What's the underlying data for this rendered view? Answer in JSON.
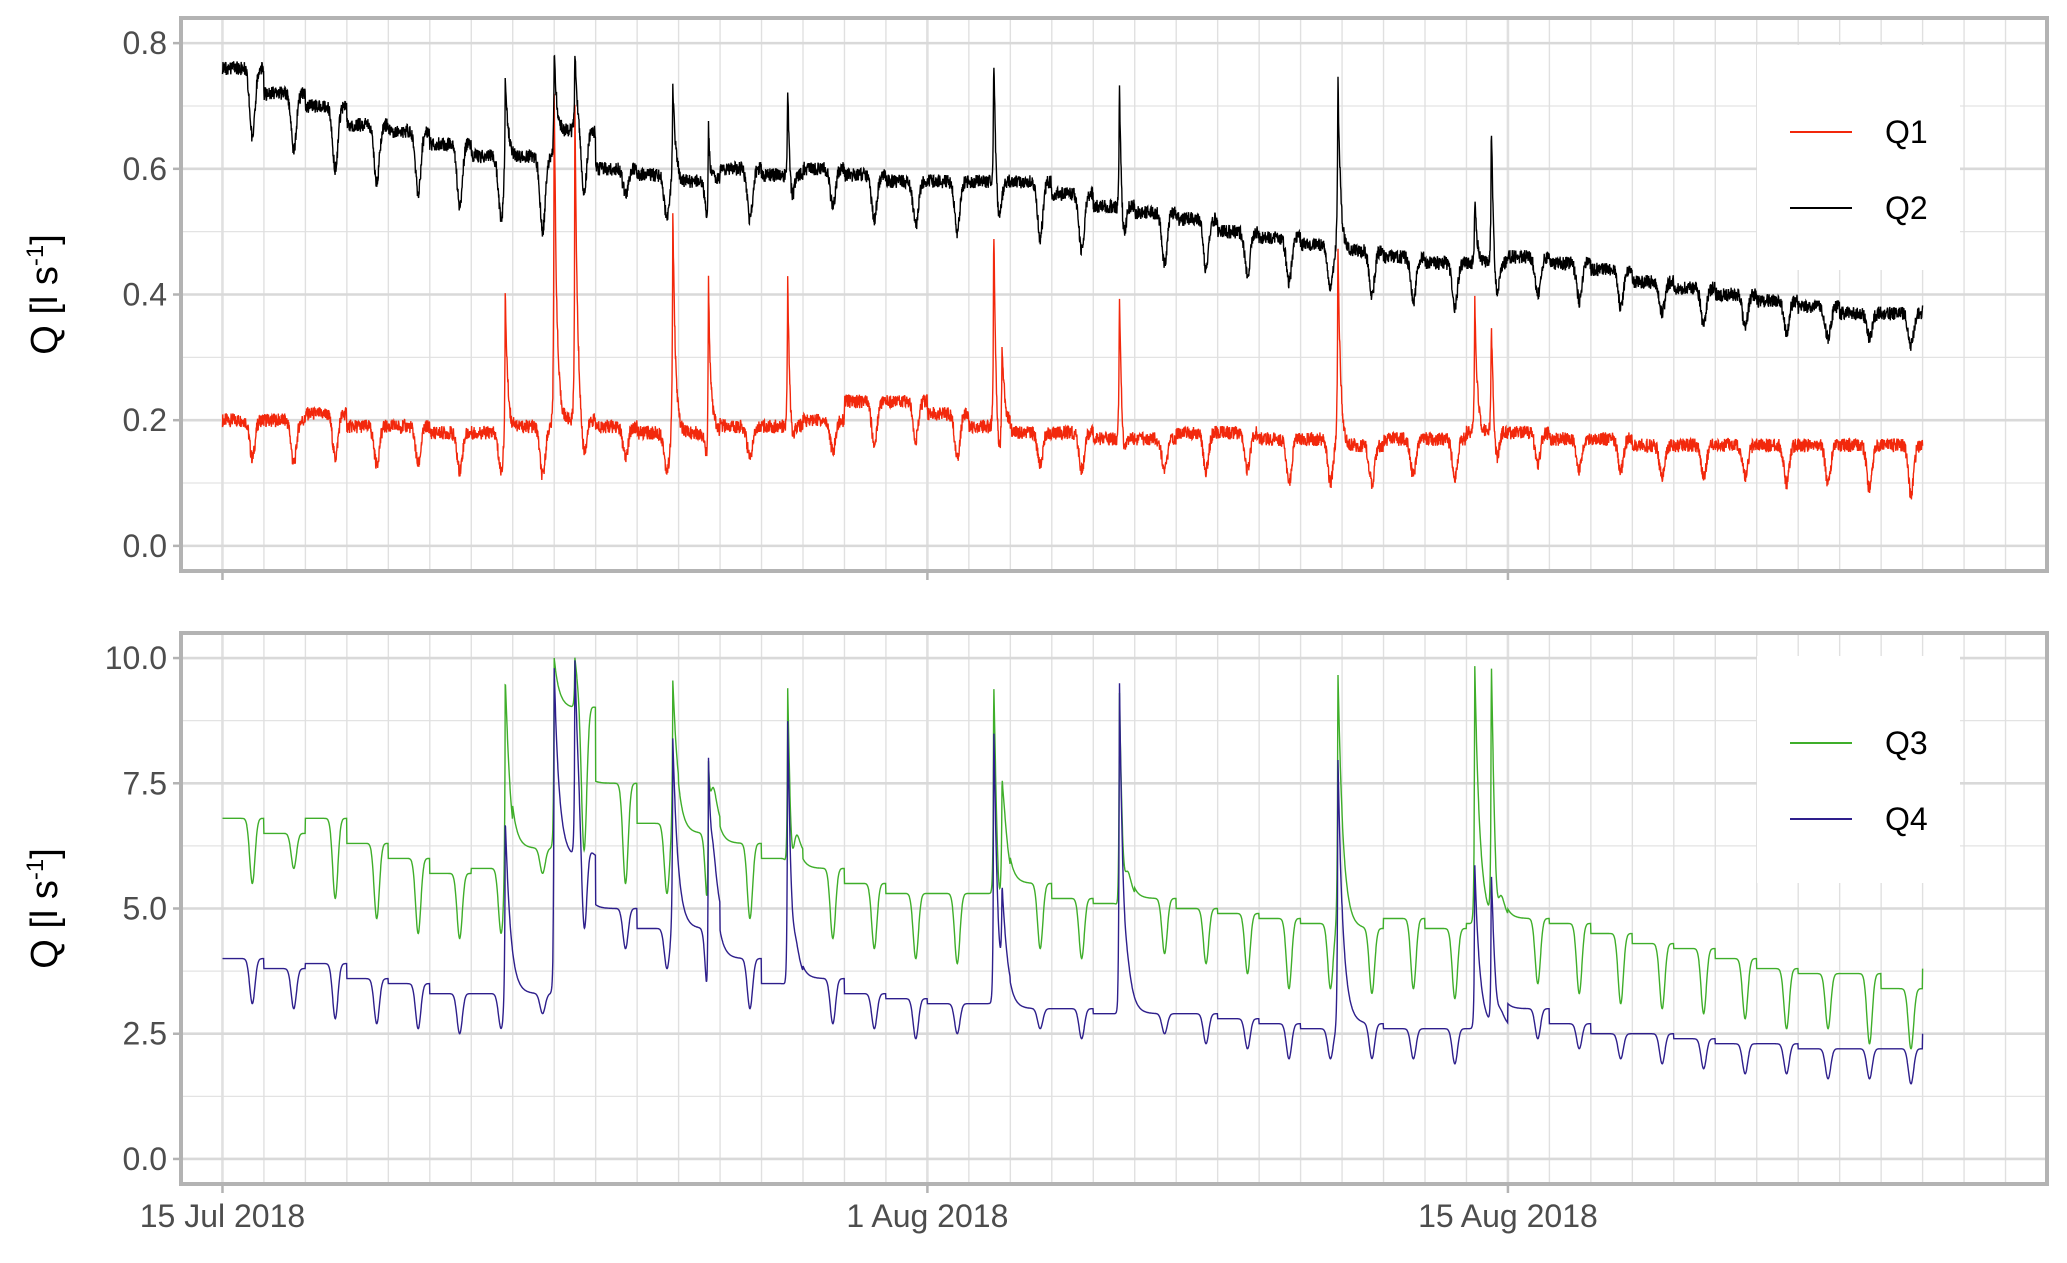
{
  "chart_data": {
    "type": "line",
    "x_start_date": "15 Jul 2018",
    "x_unit": "days since 15 Jul 2018",
    "x_tick_labels": [
      "15 Jul 2018",
      "1 Aug 2018",
      "15 Aug 2018"
    ],
    "x_tick_days": [
      0,
      17,
      31
    ],
    "xlim_days": [
      -1,
      44
    ],
    "daily_profile_note": "daily max/min per day, diurnal minimum in the evening",
    "panels": [
      {
        "ylabel": {
          "main": "Q [l s",
          "sup": "-1",
          "end": "]"
        },
        "ylim": [
          -0.04,
          0.84
        ],
        "y_ticks": [
          0.0,
          0.2,
          0.4,
          0.6,
          0.8
        ],
        "y_tick_labels": [
          "0.0",
          "0.2",
          "0.4",
          "0.6",
          "0.8"
        ],
        "legend_position": "top-right",
        "series": [
          {
            "name": "Q1",
            "color": "#f2280c",
            "daily_max": [
              0.2,
              0.2,
              0.21,
              0.19,
              0.19,
              0.18,
              0.18,
              0.19,
              0.2,
              0.19,
              0.18,
              0.18,
              0.19,
              0.19,
              0.2,
              0.23,
              0.23,
              0.21,
              0.19,
              0.18,
              0.18,
              0.17,
              0.17,
              0.18,
              0.18,
              0.17,
              0.17,
              0.16,
              0.17,
              0.17,
              0.18,
              0.18,
              0.17,
              0.17,
              0.16,
              0.16,
              0.16,
              0.16,
              0.16,
              0.16,
              0.16,
              0.17
            ],
            "daily_min": [
              0.14,
              0.13,
              0.14,
              0.13,
              0.13,
              0.12,
              0.12,
              0.11,
              0.14,
              0.14,
              0.12,
              0.12,
              0.14,
              0.14,
              0.15,
              0.16,
              0.17,
              0.14,
              0.12,
              0.13,
              0.12,
              0.12,
              0.12,
              0.12,
              0.12,
              0.1,
              0.1,
              0.1,
              0.11,
              0.11,
              0.12,
              0.13,
              0.12,
              0.12,
              0.11,
              0.11,
              0.11,
              0.1,
              0.1,
              0.09,
              0.08,
              0.14
            ],
            "spikes": [
              [
                6.82,
                0.42
              ],
              [
                8.0,
                0.73
              ],
              [
                8.5,
                0.7
              ],
              [
                10.86,
                0.55
              ],
              [
                11.72,
                0.5
              ],
              [
                13.63,
                0.45
              ],
              [
                18.6,
                0.53
              ],
              [
                18.8,
                0.34
              ],
              [
                21.63,
                0.43
              ],
              [
                26.9,
                0.48
              ],
              [
                30.2,
                0.4
              ],
              [
                30.6,
                0.37
              ]
            ]
          },
          {
            "name": "Q2",
            "color": "#000000",
            "daily_max": [
              0.76,
              0.72,
              0.7,
              0.67,
              0.66,
              0.64,
              0.62,
              0.62,
              0.66,
              0.6,
              0.59,
              0.58,
              0.6,
              0.59,
              0.6,
              0.59,
              0.58,
              0.58,
              0.58,
              0.58,
              0.56,
              0.54,
              0.53,
              0.52,
              0.5,
              0.49,
              0.48,
              0.47,
              0.46,
              0.45,
              0.45,
              0.46,
              0.45,
              0.44,
              0.42,
              0.41,
              0.4,
              0.39,
              0.38,
              0.37,
              0.37,
              0.39
            ],
            "daily_min": [
              0.65,
              0.63,
              0.6,
              0.58,
              0.56,
              0.54,
              0.52,
              0.5,
              0.56,
              0.56,
              0.52,
              0.5,
              0.52,
              0.53,
              0.54,
              0.52,
              0.51,
              0.5,
              0.5,
              0.49,
              0.47,
              0.46,
              0.45,
              0.44,
              0.43,
              0.42,
              0.41,
              0.4,
              0.39,
              0.38,
              0.38,
              0.4,
              0.39,
              0.38,
              0.37,
              0.35,
              0.35,
              0.34,
              0.33,
              0.33,
              0.32,
              0.35
            ],
            "spikes": [
              [
                6.82,
                0.78
              ],
              [
                8.0,
                0.79
              ],
              [
                8.5,
                0.79
              ],
              [
                10.86,
                0.74
              ],
              [
                11.72,
                0.76
              ],
              [
                13.63,
                0.76
              ],
              [
                18.6,
                0.79
              ],
              [
                21.63,
                0.78
              ],
              [
                26.9,
                0.75
              ],
              [
                30.2,
                0.55
              ],
              [
                30.6,
                0.69
              ]
            ]
          }
        ]
      },
      {
        "ylabel": {
          "main": "Q [l s",
          "sup": "-1",
          "end": "]"
        },
        "ylim": [
          -0.5,
          10.5
        ],
        "y_ticks": [
          0.0,
          2.5,
          5.0,
          7.5,
          10.0
        ],
        "y_tick_labels": [
          "0.0",
          "2.5",
          "5.0",
          "7.5",
          "10.0"
        ],
        "legend_position": "top-right",
        "series": [
          {
            "name": "Q3",
            "color": "#3fae2a",
            "daily_max": [
              6.8,
              6.5,
              6.8,
              6.3,
              6.0,
              5.7,
              5.8,
              6.2,
              9.0,
              7.5,
              6.7,
              6.5,
              6.3,
              6.0,
              5.8,
              5.5,
              5.3,
              5.3,
              5.3,
              5.5,
              5.2,
              5.1,
              5.2,
              5.0,
              4.9,
              4.8,
              4.7,
              4.6,
              4.8,
              4.6,
              4.7,
              4.8,
              4.7,
              4.5,
              4.3,
              4.2,
              4.0,
              3.8,
              3.7,
              3.7,
              3.4,
              3.8
            ],
            "daily_min": [
              5.5,
              5.8,
              5.2,
              4.8,
              4.5,
              4.4,
              4.5,
              5.7,
              6.0,
              5.5,
              5.3,
              4.7,
              4.8,
              4.6,
              4.4,
              4.2,
              4.0,
              3.9,
              3.9,
              4.2,
              4.0,
              4.0,
              4.1,
              3.9,
              3.7,
              3.4,
              3.4,
              3.3,
              3.4,
              3.2,
              3.6,
              3.5,
              3.3,
              3.1,
              3.0,
              2.9,
              2.8,
              2.6,
              2.6,
              2.3,
              2.2,
              3.7
            ],
            "spikes": [
              [
                6.82,
                10.0
              ],
              [
                8.0,
                10.0
              ],
              [
                8.5,
                10.0
              ],
              [
                10.86,
                9.7
              ],
              [
                11.72,
                9.8
              ],
              [
                13.63,
                10.0
              ],
              [
                18.6,
                9.8
              ],
              [
                18.8,
                7.4
              ],
              [
                21.63,
                9.8
              ],
              [
                26.9,
                9.8
              ],
              [
                30.2,
                9.9
              ],
              [
                30.6,
                10.0
              ]
            ]
          },
          {
            "name": "Q4",
            "color": "#2e1f8c",
            "daily_max": [
              4.0,
              3.8,
              3.9,
              3.6,
              3.5,
              3.3,
              3.3,
              3.3,
              6.0,
              5.0,
              4.6,
              4.6,
              4.0,
              3.5,
              3.6,
              3.3,
              3.2,
              3.1,
              3.1,
              3.0,
              3.0,
              2.9,
              2.9,
              2.9,
              2.8,
              2.7,
              2.6,
              2.7,
              2.6,
              2.6,
              2.6,
              3.0,
              2.7,
              2.5,
              2.5,
              2.4,
              2.3,
              2.3,
              2.2,
              2.2,
              2.2,
              2.5
            ],
            "daily_min": [
              3.1,
              3.0,
              2.8,
              2.7,
              2.6,
              2.5,
              2.6,
              2.9,
              4.0,
              4.2,
              3.8,
              2.9,
              3.0,
              2.8,
              2.7,
              2.6,
              2.4,
              2.5,
              2.5,
              2.6,
              2.4,
              2.4,
              2.5,
              2.3,
              2.2,
              2.0,
              2.0,
              2.0,
              2.0,
              1.9,
              2.2,
              2.4,
              2.2,
              2.0,
              1.9,
              1.8,
              1.7,
              1.7,
              1.6,
              1.6,
              1.5,
              2.4
            ],
            "spikes": [
              [
                6.82,
                7.0
              ],
              [
                8.0,
                9.8
              ],
              [
                8.5,
                9.9
              ],
              [
                10.86,
                8.5
              ],
              [
                11.72,
                9.8
              ],
              [
                13.63,
                9.1
              ],
              [
                18.6,
                8.8
              ],
              [
                18.8,
                4.7
              ],
              [
                21.63,
                9.8
              ],
              [
                26.9,
                8.1
              ],
              [
                30.2,
                5.9
              ],
              [
                30.6,
                5.7
              ]
            ]
          }
        ]
      }
    ]
  }
}
